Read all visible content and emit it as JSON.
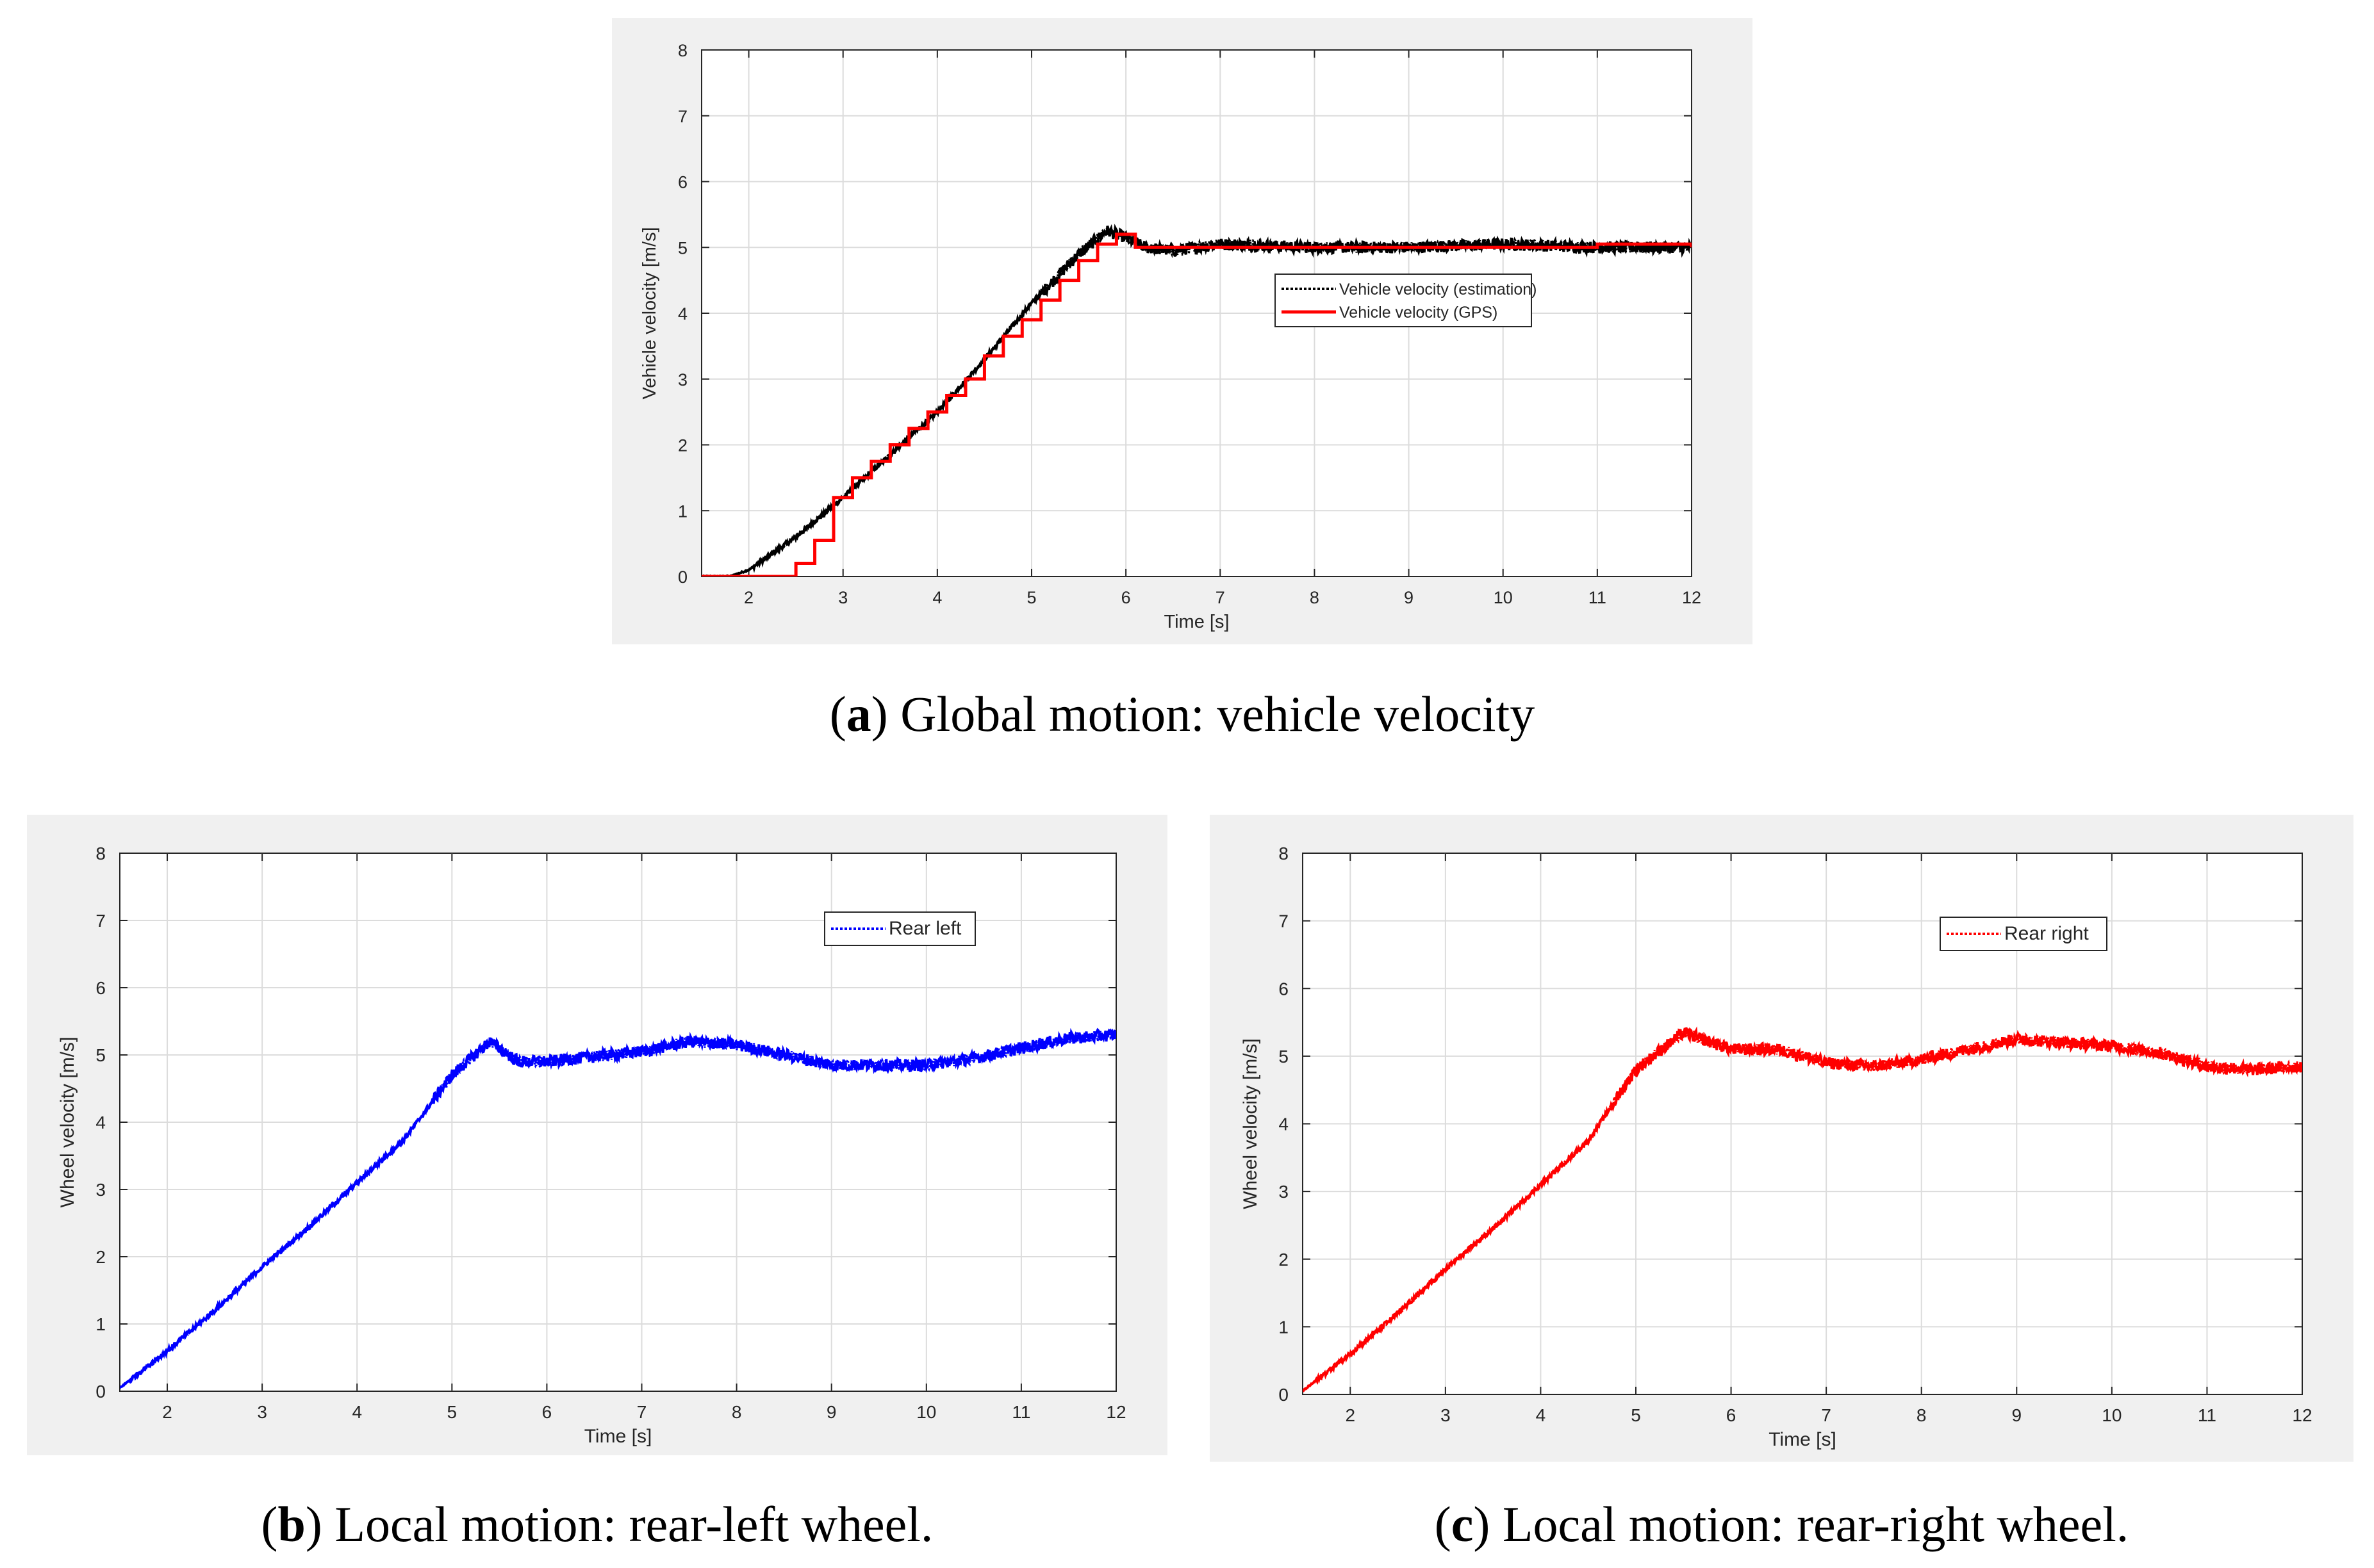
{
  "captions": [
    {
      "letter": "a",
      "open": "(",
      "close": ")",
      "text": " Global motion: vehicle velocity"
    },
    {
      "letter": "b",
      "open": "(",
      "close": ")",
      "text": " Local motion: rear-left wheel."
    },
    {
      "letter": "c",
      "open": "(",
      "close": ")",
      "text": " Local motion: rear-right wheel."
    }
  ],
  "chart_data": [
    {
      "type": "line",
      "xlabel": "Time [s]",
      "ylabel": "Vehicle velocity [m/s]",
      "xlim": [
        1.5,
        12
      ],
      "ylim": [
        0,
        8
      ],
      "xticks": [
        "2",
        "3",
        "4",
        "5",
        "6",
        "7",
        "8",
        "9",
        "10",
        "11",
        "12"
      ],
      "yticks": [
        "0",
        "1",
        "2",
        "3",
        "4",
        "5",
        "6",
        "7",
        "8"
      ],
      "grid": true,
      "legend_position": "upper-right",
      "series": [
        {
          "name": "Vehicle velocity (estimation)",
          "color": "#000000",
          "style": "dotted-noisy",
          "x": [
            1.5,
            1.8,
            2.0,
            2.5,
            3.0,
            3.5,
            4.0,
            4.5,
            5.0,
            5.5,
            5.8,
            6.0,
            6.2,
            6.5,
            7.0,
            8.0,
            9.0,
            10.0,
            11.0,
            12.0
          ],
          "y": [
            0,
            0,
            0.1,
            0.6,
            1.2,
            1.85,
            2.5,
            3.3,
            4.15,
            4.9,
            5.25,
            5.15,
            5.0,
            4.95,
            5.05,
            5.0,
            5.0,
            5.05,
            5.0,
            5.0
          ]
        },
        {
          "name": "Vehicle velocity (GPS)",
          "color": "#ff0000",
          "style": "step",
          "x": [
            1.5,
            2.5,
            2.7,
            2.9,
            3.1,
            3.3,
            3.5,
            3.7,
            3.9,
            4.1,
            4.3,
            4.5,
            4.7,
            4.9,
            5.1,
            5.3,
            5.5,
            5.7,
            5.9,
            6.1,
            7.0,
            8.0,
            9.0,
            10.0,
            11.0,
            12.0
          ],
          "y": [
            0,
            0.2,
            0.55,
            1.2,
            1.5,
            1.75,
            2.0,
            2.25,
            2.5,
            2.75,
            3.0,
            3.35,
            3.65,
            3.9,
            4.2,
            4.5,
            4.8,
            5.05,
            5.2,
            5.0,
            5.0,
            5.0,
            5.0,
            5.0,
            5.05,
            5.0
          ]
        }
      ]
    },
    {
      "type": "line",
      "xlabel": "Time [s]",
      "ylabel": "Wheel velocity [m/s]",
      "xlim": [
        1.5,
        12
      ],
      "ylim": [
        0,
        8
      ],
      "xticks": [
        "2",
        "3",
        "4",
        "5",
        "6",
        "7",
        "8",
        "9",
        "10",
        "11",
        "12"
      ],
      "yticks": [
        "0",
        "1",
        "2",
        "3",
        "4",
        "5",
        "6",
        "7",
        "8"
      ],
      "grid": true,
      "legend_position": "upper-right",
      "series": [
        {
          "name": "Rear left",
          "color": "#0000ff",
          "style": "dotted-noisy",
          "x": [
            1.5,
            2.0,
            2.5,
            3.0,
            3.5,
            4.0,
            4.5,
            5.0,
            5.4,
            5.7,
            6.0,
            7.0,
            7.5,
            8.0,
            8.5,
            9.0,
            9.5,
            10.0,
            10.5,
            11.0,
            11.5,
            12.0
          ],
          "y": [
            0.05,
            0.6,
            1.2,
            1.85,
            2.45,
            3.1,
            3.75,
            4.7,
            5.2,
            4.9,
            4.9,
            5.05,
            5.2,
            5.15,
            5.0,
            4.85,
            4.85,
            4.85,
            4.95,
            5.1,
            5.25,
            5.3
          ]
        }
      ]
    },
    {
      "type": "line",
      "xlabel": "Time [s]",
      "ylabel": "Wheel velocity [m/s]",
      "xlim": [
        1.5,
        12
      ],
      "ylim": [
        0,
        8
      ],
      "xticks": [
        "2",
        "3",
        "4",
        "5",
        "6",
        "7",
        "8",
        "9",
        "10",
        "11",
        "12"
      ],
      "yticks": [
        "0",
        "1",
        "2",
        "3",
        "4",
        "5",
        "6",
        "7",
        "8"
      ],
      "grid": true,
      "legend_position": "upper-right",
      "series": [
        {
          "name": "Rear right",
          "color": "#ff0000",
          "style": "dotted-noisy",
          "x": [
            1.5,
            2.0,
            2.5,
            3.0,
            3.5,
            4.0,
            4.5,
            5.0,
            5.5,
            6.0,
            6.5,
            7.0,
            7.5,
            8.0,
            8.5,
            9.0,
            9.5,
            10.0,
            10.5,
            11.0,
            11.5,
            12.0
          ],
          "y": [
            0.05,
            0.6,
            1.2,
            1.85,
            2.45,
            3.1,
            3.75,
            4.8,
            5.35,
            5.1,
            5.1,
            4.9,
            4.85,
            4.95,
            5.1,
            5.25,
            5.2,
            5.15,
            5.05,
            4.85,
            4.8,
            4.85
          ]
        }
      ]
    }
  ]
}
